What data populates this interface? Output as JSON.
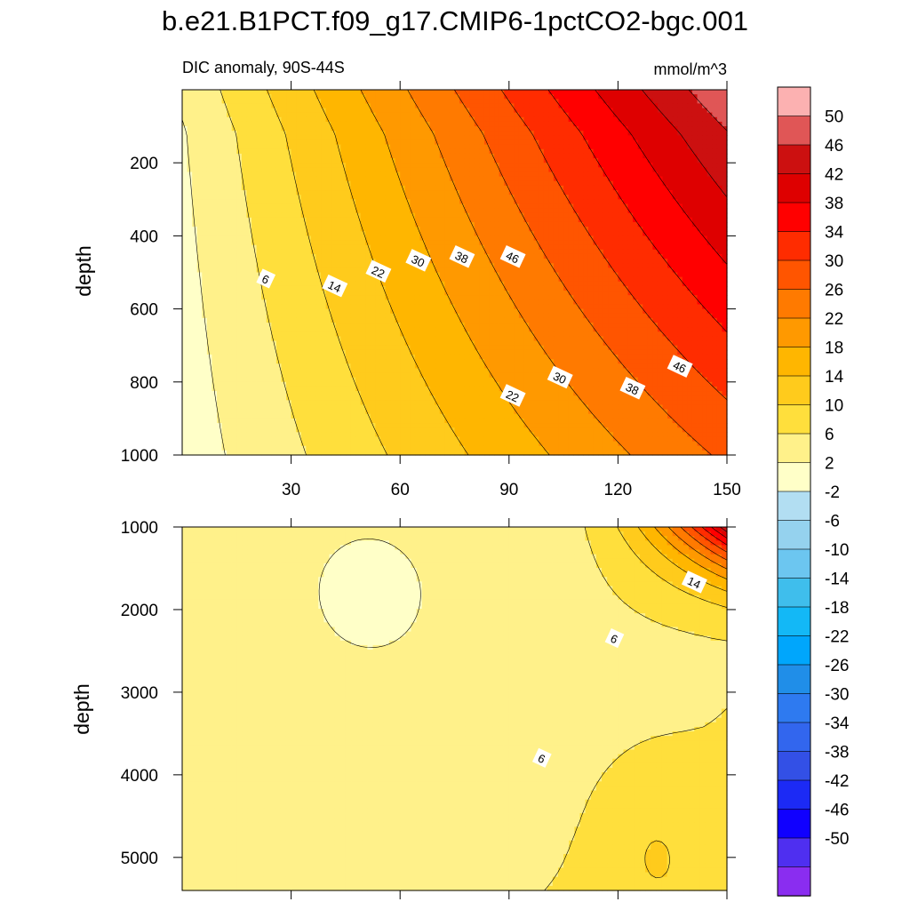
{
  "chart_data": {
    "type": "heatmap",
    "title": "b.e21.B1PCT.f09_g17.CMIP6-1pctCO2-bgc.001",
    "subtitle_left": "DIC anomaly, 90S-44S",
    "subtitle_right": "mmol/m^3",
    "x": {
      "ticks": [
        30,
        60,
        90,
        120,
        150
      ],
      "range": [
        0,
        150
      ],
      "label": ""
    },
    "panels": [
      {
        "name": "upper",
        "ylabel": "depth",
        "yrange": [
          0,
          1000
        ],
        "yticks": [
          200,
          400,
          600,
          800,
          1000
        ],
        "contour_labels": [
          {
            "text": "6",
            "x": 23,
            "y": 518
          },
          {
            "text": "14",
            "x": 42,
            "y": 538
          },
          {
            "text": "22",
            "x": 54,
            "y": 498
          },
          {
            "text": "30",
            "x": 65,
            "y": 468
          },
          {
            "text": "38",
            "x": 77,
            "y": 458
          },
          {
            "text": "46",
            "x": 91,
            "y": 458
          },
          {
            "text": "30",
            "x": 104,
            "y": 788
          },
          {
            "text": "22",
            "x": 91,
            "y": 838
          },
          {
            "text": "38",
            "x": 124,
            "y": 818
          },
          {
            "text": "46",
            "x": 137,
            "y": 758
          }
        ]
      },
      {
        "name": "lower",
        "ylabel": "depth",
        "yrange": [
          1000,
          5400
        ],
        "yticks": [
          1000,
          2000,
          3000,
          4000,
          5000
        ],
        "contour_labels": [
          {
            "text": "14",
            "x": 141,
            "y": 1670
          },
          {
            "text": "6",
            "x": 119,
            "y": 2350
          },
          {
            "text": "6",
            "x": 99,
            "y": 3800
          }
        ]
      }
    ],
    "colorbar": {
      "labels": [
        "50",
        "46",
        "42",
        "38",
        "34",
        "30",
        "26",
        "22",
        "18",
        "14",
        "10",
        "6",
        "2",
        "-2",
        "-6",
        "-10",
        "-14",
        "-18",
        "-22",
        "-26",
        "-30",
        "-34",
        "-38",
        "-42",
        "-46",
        "-50"
      ],
      "colors": [
        "#fcb1b1",
        "#e05656",
        "#cc1010",
        "#de0000",
        "#ff0000",
        "#ff2c00",
        "#ff5500",
        "#ff7a00",
        "#ff9900",
        "#ffb600",
        "#ffcb1c",
        "#ffdf3c",
        "#fff18a",
        "#ffffc8",
        "#b2def2",
        "#95d2ee",
        "#6cc6f0",
        "#3fbeec",
        "#13b8f6",
        "#00a6fc",
        "#208ee8",
        "#2e7af0",
        "#3266ee",
        "#3350e6",
        "#1c2af5",
        "#1000ff",
        "#4f2ff0",
        "#8a2df0"
      ]
    }
  }
}
